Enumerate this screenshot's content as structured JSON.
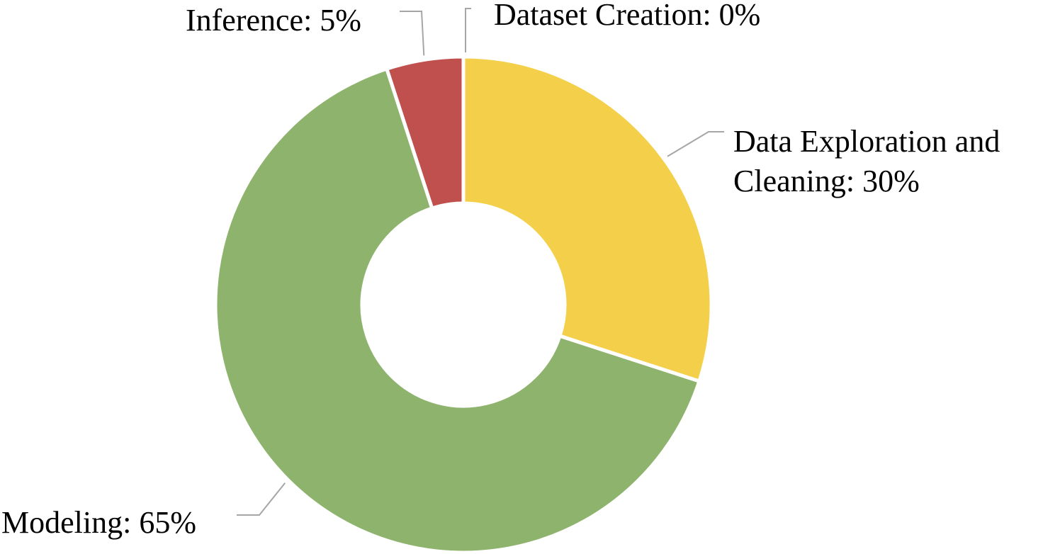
{
  "chart_data": {
    "type": "pie",
    "donut": true,
    "title": "",
    "categories": [
      "Dataset Creation",
      "Data Exploration and Cleaning",
      "Modeling",
      "Inference"
    ],
    "values": [
      0,
      30,
      65,
      5
    ],
    "colors": [
      "#4472c4",
      "#f4d04a",
      "#8db36d",
      "#c0504d"
    ],
    "labels": [
      {
        "lines": [
          "Dataset Creation: 0%"
        ]
      },
      {
        "lines": [
          "Data Exploration and",
          "Cleaning: 30%"
        ]
      },
      {
        "lines": [
          "Modeling: 65%"
        ]
      },
      {
        "lines": [
          "Inference: 5%"
        ]
      }
    ],
    "legend": "none",
    "unit": "%"
  }
}
